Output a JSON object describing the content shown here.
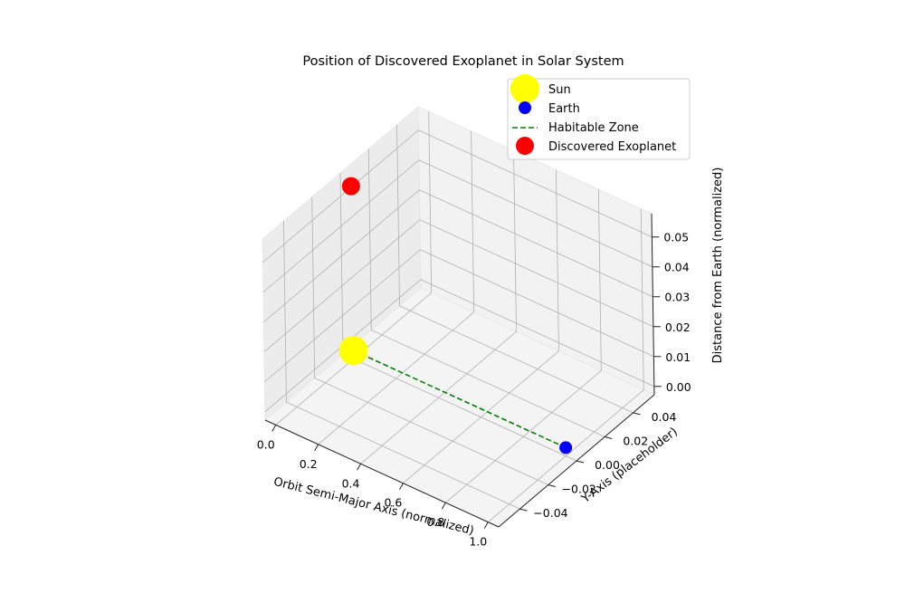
{
  "chart_data": {
    "type": "scatter3d",
    "title": "Position of Discovered Exoplanet in Solar System",
    "xlabel": "Orbit Semi-Major Axis (normalized)",
    "ylabel": "Y-Axis (placeholder)",
    "zlabel": "Distance from Earth (normalized)",
    "xlim": [
      -0.05,
      1.05
    ],
    "ylim": [
      -0.055,
      0.055
    ],
    "zlim": [
      -0.0028,
      0.0578
    ],
    "x_ticks": [
      "0.0",
      "0.2",
      "0.4",
      "0.6",
      "0.8",
      "1.0"
    ],
    "y_ticks": [
      "−0.04",
      "−0.02",
      "0.00",
      "0.02",
      "0.04"
    ],
    "z_ticks": [
      "0.00",
      "0.01",
      "0.02",
      "0.03",
      "0.04",
      "0.05"
    ],
    "grid": true,
    "legend_position": "top-right",
    "series": [
      {
        "name": "Sun",
        "kind": "point",
        "color": "#ffff00",
        "x": 0.0,
        "y": 0.0,
        "z": 0.0
      },
      {
        "name": "Earth",
        "kind": "point",
        "color": "#0000ff",
        "x": 1.0,
        "y": 0.0,
        "z": 0.0
      },
      {
        "name": "Habitable Zone",
        "kind": "dashed-line",
        "color": "#008000",
        "x": [
          0.0,
          1.0
        ],
        "y": [
          0.0,
          0.0
        ],
        "z": [
          0.0,
          0.0
        ]
      },
      {
        "name": "Discovered Exoplanet",
        "kind": "point",
        "color": "#ff0000",
        "x": 0.0,
        "y": 0.0,
        "z": 0.055
      }
    ]
  }
}
